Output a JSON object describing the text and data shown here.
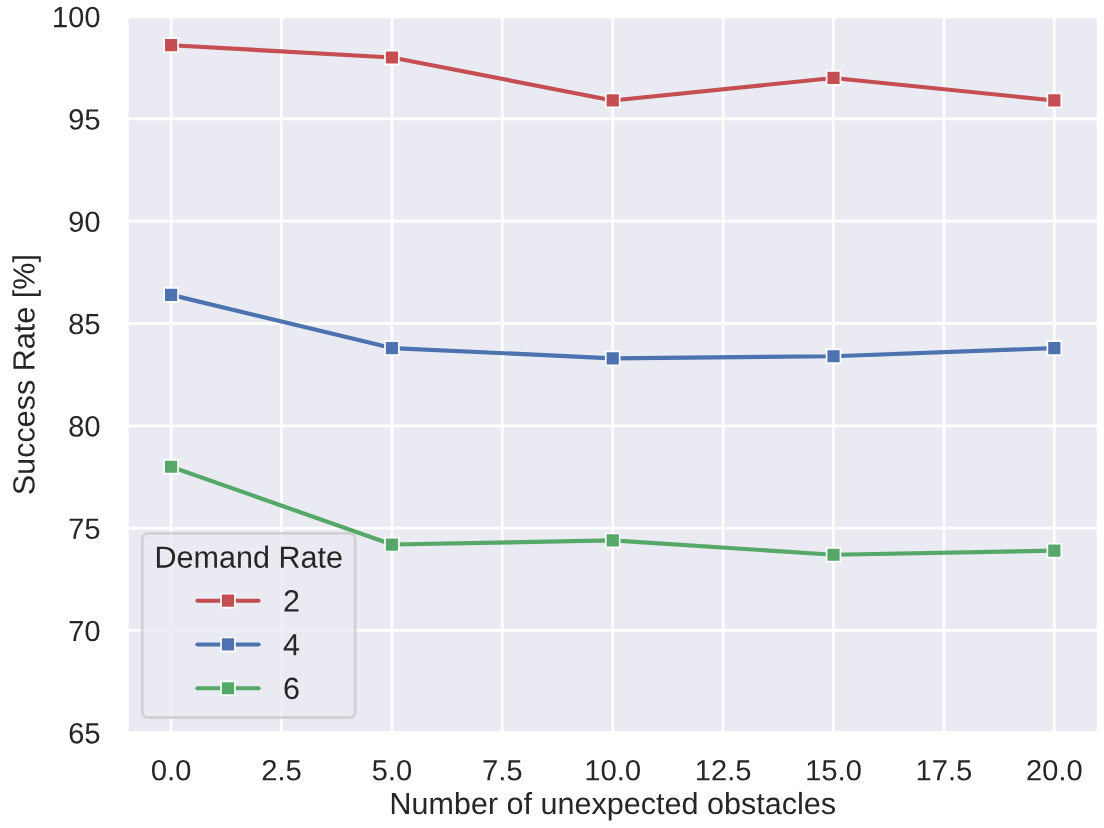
{
  "chart_data": {
    "type": "line",
    "xlabel": "Number of unexpected obstacles",
    "ylabel": "Success Rate [%]",
    "legend_title": "Demand Rate",
    "x": [
      0,
      5,
      10,
      15,
      20
    ],
    "series": [
      {
        "name": "2",
        "color": "#c44e52",
        "values": [
          98.6,
          98.0,
          95.9,
          97.0,
          95.9
        ]
      },
      {
        "name": "4",
        "color": "#4c72b0",
        "values": [
          86.4,
          83.8,
          83.3,
          83.4,
          83.8
        ]
      },
      {
        "name": "6",
        "color": "#55a868",
        "values": [
          78.0,
          74.2,
          74.4,
          73.7,
          73.9
        ]
      }
    ],
    "xlim": [
      -1,
      21
    ],
    "ylim": [
      65,
      100
    ],
    "xticks": [
      {
        "value": 0,
        "label": "0.0"
      },
      {
        "value": 2.5,
        "label": "2.5"
      },
      {
        "value": 5,
        "label": "5.0"
      },
      {
        "value": 7.5,
        "label": "7.5"
      },
      {
        "value": 10,
        "label": "10.0"
      },
      {
        "value": 12.5,
        "label": "12.5"
      },
      {
        "value": 15,
        "label": "15.0"
      },
      {
        "value": 17.5,
        "label": "17.5"
      },
      {
        "value": 20,
        "label": "20.0"
      }
    ],
    "yticks": [
      65,
      70,
      75,
      80,
      85,
      90,
      95,
      100
    ],
    "grid": true,
    "legend": "bottom left",
    "marker": "square",
    "line_style": "solid"
  }
}
